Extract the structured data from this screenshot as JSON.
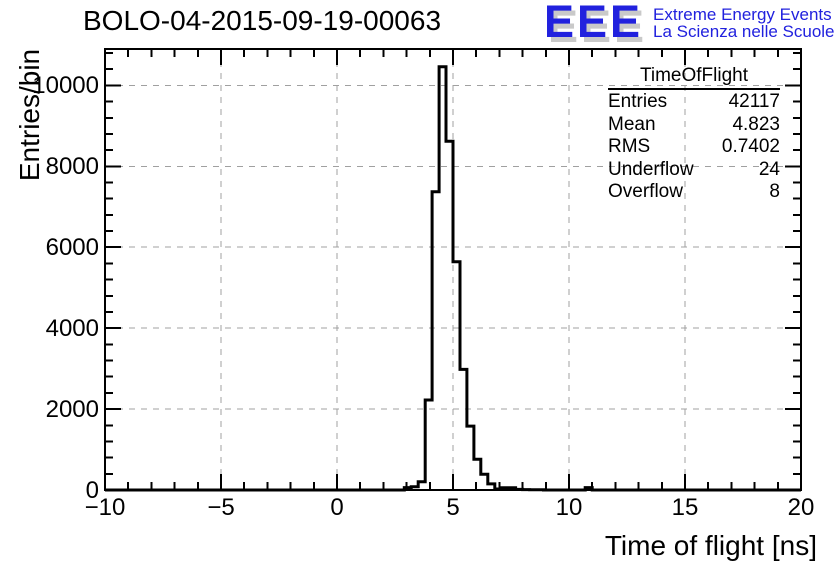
{
  "title": "BOLO-04-2015-09-19-00063",
  "logo": {
    "letters": "EEE",
    "line1": "Extreme Energy Events",
    "line2": "La Scienza nelle Scuole",
    "color": "#2121de",
    "shadow_color": "#c9c9c9"
  },
  "stats": {
    "title": "TimeOfFlight",
    "rows": [
      {
        "label": "Entries",
        "value": "42117"
      },
      {
        "label": "Mean",
        "value": "4.823"
      },
      {
        "label": "RMS",
        "value": "0.7402"
      },
      {
        "label": "Underflow",
        "value": "24"
      },
      {
        "label": "Overflow",
        "value": "8"
      }
    ]
  },
  "axes": {
    "x": {
      "label": "Time of flight [ns]",
      "min": -10,
      "max": 20,
      "minor_step": 1,
      "major_ticks": [
        -10,
        -5,
        0,
        5,
        10,
        15,
        20
      ],
      "tick_labels": [
        "−10",
        "−5",
        "0",
        "5",
        "10",
        "15",
        "20"
      ]
    },
    "y": {
      "label": "Entries/bin",
      "min": 0,
      "max": 10900,
      "minor_step": 400,
      "major_ticks": [
        0,
        2000,
        4000,
        6000,
        8000,
        10000
      ],
      "tick_labels": [
        "0",
        "2000",
        "4000",
        "6000",
        "8000",
        "10000"
      ]
    }
  },
  "chart_data": {
    "type": "bar",
    "style": "root-step-histogram-outline",
    "title": "BOLO-04-2015-09-19-00063",
    "xlabel": "Time of flight [ns]",
    "ylabel": "Entries/bin",
    "xlim": [
      -10,
      20
    ],
    "ylim": [
      0,
      10900
    ],
    "grid": "dashed-gray-on-major-ticks",
    "legend": "none",
    "bin_start": -10,
    "bin_width": 0.3,
    "n_bins": 100,
    "nonzero_bins": [
      {
        "x0": 2.9,
        "y": 60
      },
      {
        "x0": 3.2,
        "y": 80
      },
      {
        "x0": 3.5,
        "y": 205
      },
      {
        "x0": 3.8,
        "y": 2225
      },
      {
        "x0": 4.1,
        "y": 7370
      },
      {
        "x0": 4.4,
        "y": 10460
      },
      {
        "x0": 4.7,
        "y": 8620
      },
      {
        "x0": 5.0,
        "y": 5640
      },
      {
        "x0": 5.3,
        "y": 2980
      },
      {
        "x0": 5.6,
        "y": 1580
      },
      {
        "x0": 5.9,
        "y": 760
      },
      {
        "x0": 6.2,
        "y": 390
      },
      {
        "x0": 6.5,
        "y": 150
      },
      {
        "x0": 6.8,
        "y": 25
      },
      {
        "x0": 7.1,
        "y": 55
      },
      {
        "x0": 7.4,
        "y": 55
      },
      {
        "x0": 7.7,
        "y": 15
      },
      {
        "x0": 8.0,
        "y": 10
      },
      {
        "x0": 8.3,
        "y": 8
      },
      {
        "x0": 8.6,
        "y": 5
      },
      {
        "x0": 10.7,
        "y": 60
      }
    ],
    "peak": {
      "bin_range": [
        4.4,
        4.7
      ],
      "value": 10460
    },
    "entries": 42117,
    "mean": 4.823,
    "rms": 0.7402,
    "underflow": 24,
    "overflow": 8
  },
  "colors": {
    "background": "#ffffff",
    "histogram_line": "#000000",
    "frame": "#000000",
    "grid": "#a0a0a0",
    "logo_blue": "#2121de",
    "logo_shadow": "#c9c9c9"
  }
}
